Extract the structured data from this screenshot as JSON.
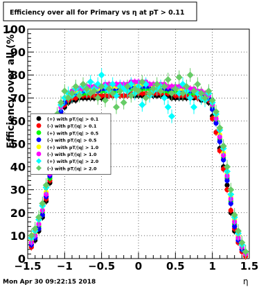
{
  "chart_data": {
    "type": "scatter",
    "title": "Efficiency over all for Primary vs   η at pT > 0.11",
    "xlabel": "η",
    "ylabel": "Efficiency over all (%)",
    "xlim": [
      -1.5,
      1.5
    ],
    "ylim": [
      0,
      100
    ],
    "x_ticks": [
      -1.5,
      -1,
      -0.5,
      0,
      0.5,
      1,
      1.5
    ],
    "x_tick_labels": [
      "−1.5",
      "−1",
      "−0.5",
      "0",
      "0.5",
      "1",
      "1.5"
    ],
    "y_ticks": [
      0,
      10,
      20,
      30,
      40,
      50,
      60,
      70,
      80,
      90,
      100
    ],
    "grid": true,
    "legend_position": "left",
    "timestamp": "Mon Apr 30 09:22:15 2018",
    "series": [
      {
        "name": "(+) with pT/|q| > 0.1",
        "color": "#000000",
        "x": [
          -1.45,
          -1.4,
          -1.35,
          -1.3,
          -1.25,
          -1.2,
          -1.15,
          -1.1,
          -1.05,
          -1.0,
          -0.95,
          -0.9,
          -0.85,
          -0.8,
          -0.75,
          -0.7,
          -0.65,
          -0.6,
          -0.55,
          -0.5,
          -0.45,
          -0.4,
          -0.35,
          -0.3,
          -0.25,
          -0.2,
          -0.15,
          -0.1,
          -0.05,
          0.0,
          0.05,
          0.1,
          0.15,
          0.2,
          0.25,
          0.3,
          0.35,
          0.4,
          0.45,
          0.5,
          0.55,
          0.6,
          0.65,
          0.7,
          0.75,
          0.8,
          0.85,
          0.9,
          0.95,
          1.0,
          1.05,
          1.1,
          1.15,
          1.2,
          1.25,
          1.3,
          1.35,
          1.4,
          1.45
        ],
        "y": [
          6,
          8,
          12,
          18,
          25,
          33,
          45,
          55,
          62,
          66,
          68,
          69,
          69,
          70,
          70,
          70,
          70,
          70,
          70,
          70,
          70,
          71,
          71,
          71,
          71,
          71,
          71,
          71,
          71,
          71,
          71,
          71,
          71,
          71,
          71,
          71,
          71,
          71,
          70,
          70,
          70,
          70,
          70,
          70,
          70,
          70,
          69,
          69,
          68,
          62,
          55,
          48,
          40,
          32,
          20,
          12,
          7,
          4,
          2
        ]
      },
      {
        "name": "(-) with pT/|q| > 0.1",
        "color": "#ff0000",
        "x": [
          -1.45,
          -1.4,
          -1.35,
          -1.3,
          -1.25,
          -1.2,
          -1.15,
          -1.1,
          -1.05,
          -1.0,
          -0.95,
          -0.9,
          -0.85,
          -0.8,
          -0.75,
          -0.7,
          -0.65,
          -0.6,
          -0.55,
          -0.5,
          -0.45,
          -0.4,
          -0.35,
          -0.3,
          -0.25,
          -0.2,
          -0.15,
          -0.1,
          -0.05,
          0.0,
          0.05,
          0.1,
          0.15,
          0.2,
          0.25,
          0.3,
          0.35,
          0.4,
          0.45,
          0.5,
          0.55,
          0.6,
          0.65,
          0.7,
          0.75,
          0.8,
          0.85,
          0.9,
          0.95,
          1.0,
          1.05,
          1.1,
          1.15,
          1.2,
          1.25,
          1.3,
          1.35,
          1.4,
          1.45
        ],
        "y": [
          5,
          9,
          13,
          19,
          26,
          34,
          46,
          56,
          63,
          67,
          69,
          70,
          70,
          71,
          71,
          71,
          71,
          71,
          71,
          71,
          71,
          71,
          71,
          71,
          71,
          71,
          71,
          72,
          72,
          72,
          72,
          72,
          72,
          72,
          72,
          72,
          72,
          72,
          72,
          71,
          71,
          71,
          71,
          71,
          71,
          70,
          70,
          70,
          69,
          61,
          55,
          47,
          39,
          30,
          21,
          13,
          7,
          3,
          1
        ]
      },
      {
        "name": "(+) with pT/|q| > 0.5",
        "color": "#00ff00",
        "x": [
          -1.45,
          -1.4,
          -1.35,
          -1.3,
          -1.25,
          -1.2,
          -1.15,
          -1.1,
          -1.05,
          -1.0,
          -0.95,
          -0.9,
          -0.85,
          -0.8,
          -0.75,
          -0.7,
          -0.65,
          -0.6,
          -0.55,
          -0.5,
          -0.45,
          -0.4,
          -0.35,
          -0.3,
          -0.25,
          -0.2,
          -0.15,
          -0.1,
          -0.05,
          0.0,
          0.05,
          0.1,
          0.15,
          0.2,
          0.25,
          0.3,
          0.35,
          0.4,
          0.45,
          0.5,
          0.55,
          0.6,
          0.65,
          0.7,
          0.75,
          0.8,
          0.85,
          0.9,
          0.95,
          1.0,
          1.05,
          1.1,
          1.15,
          1.2,
          1.25,
          1.3,
          1.35,
          1.4,
          1.45
        ],
        "y": [
          7,
          10,
          14,
          20,
          27,
          35,
          48,
          58,
          64,
          68,
          70,
          71,
          72,
          72,
          72,
          72,
          73,
          73,
          73,
          73,
          73,
          73,
          73,
          73,
          73,
          74,
          74,
          74,
          74,
          74,
          74,
          74,
          74,
          74,
          74,
          73,
          73,
          73,
          73,
          73,
          73,
          73,
          73,
          72,
          72,
          72,
          72,
          71,
          70,
          66,
          60,
          52,
          44,
          35,
          25,
          15,
          9,
          5,
          2
        ]
      },
      {
        "name": "(-) with pT/|q| > 0.5",
        "color": "#0000ff",
        "x": [
          -1.45,
          -1.4,
          -1.35,
          -1.3,
          -1.25,
          -1.2,
          -1.15,
          -1.1,
          -1.05,
          -1.0,
          -0.95,
          -0.9,
          -0.85,
          -0.8,
          -0.75,
          -0.7,
          -0.65,
          -0.6,
          -0.55,
          -0.5,
          -0.45,
          -0.4,
          -0.35,
          -0.3,
          -0.25,
          -0.2,
          -0.15,
          -0.1,
          -0.05,
          0.0,
          0.05,
          0.1,
          0.15,
          0.2,
          0.25,
          0.3,
          0.35,
          0.4,
          0.45,
          0.5,
          0.55,
          0.6,
          0.65,
          0.7,
          0.75,
          0.8,
          0.85,
          0.9,
          0.95,
          1.0,
          1.05,
          1.1,
          1.15,
          1.2,
          1.25,
          1.3,
          1.35,
          1.4,
          1.45
        ],
        "y": [
          6,
          9,
          13,
          19,
          27,
          36,
          48,
          58,
          64,
          68,
          70,
          71,
          72,
          72,
          73,
          73,
          73,
          73,
          73,
          74,
          74,
          74,
          74,
          74,
          74,
          74,
          74,
          75,
          75,
          75,
          75,
          75,
          75,
          75,
          74,
          74,
          74,
          74,
          74,
          74,
          74,
          73,
          73,
          73,
          73,
          72,
          72,
          71,
          70,
          65,
          59,
          51,
          43,
          34,
          24,
          14,
          8,
          4,
          2
        ]
      },
      {
        "name": "(+) with pT/|q| > 1.0",
        "color": "#ffff00",
        "x": [
          -1.45,
          -1.4,
          -1.35,
          -1.3,
          -1.25,
          -1.2,
          -1.15,
          -1.1,
          -1.05,
          -1.0,
          -0.95,
          -0.9,
          -0.85,
          -0.8,
          -0.75,
          -0.7,
          -0.65,
          -0.6,
          -0.55,
          -0.5,
          -0.45,
          -0.4,
          -0.35,
          -0.3,
          -0.25,
          -0.2,
          -0.15,
          -0.1,
          -0.05,
          0.0,
          0.05,
          0.1,
          0.15,
          0.2,
          0.25,
          0.3,
          0.35,
          0.4,
          0.45,
          0.5,
          0.55,
          0.6,
          0.65,
          0.7,
          0.75,
          0.8,
          0.85,
          0.9,
          0.95,
          1.0,
          1.05,
          1.1,
          1.15,
          1.2,
          1.25,
          1.3,
          1.35,
          1.4,
          1.45
        ],
        "y": [
          8,
          11,
          15,
          21,
          29,
          38,
          50,
          60,
          66,
          70,
          71,
          72,
          73,
          73,
          74,
          74,
          74,
          74,
          74,
          75,
          75,
          75,
          75,
          75,
          75,
          75,
          75,
          76,
          76,
          76,
          76,
          76,
          76,
          75,
          75,
          75,
          75,
          75,
          75,
          75,
          74,
          74,
          74,
          74,
          73,
          73,
          73,
          72,
          71,
          67,
          62,
          54,
          46,
          37,
          27,
          17,
          10,
          5,
          2
        ]
      },
      {
        "name": "(-) with pT/|q| > 1.0",
        "color": "#ff00ff",
        "x": [
          -1.45,
          -1.4,
          -1.35,
          -1.3,
          -1.25,
          -1.2,
          -1.15,
          -1.1,
          -1.05,
          -1.0,
          -0.95,
          -0.9,
          -0.85,
          -0.8,
          -0.75,
          -0.7,
          -0.65,
          -0.6,
          -0.55,
          -0.5,
          -0.45,
          -0.4,
          -0.35,
          -0.3,
          -0.25,
          -0.2,
          -0.15,
          -0.1,
          -0.05,
          0.0,
          0.05,
          0.1,
          0.15,
          0.2,
          0.25,
          0.3,
          0.35,
          0.4,
          0.45,
          0.5,
          0.55,
          0.6,
          0.65,
          0.7,
          0.75,
          0.8,
          0.85,
          0.9,
          0.95,
          1.0,
          1.05,
          1.1,
          1.15,
          1.2,
          1.25,
          1.3,
          1.35,
          1.4,
          1.45
        ],
        "y": [
          7,
          10,
          15,
          21,
          28,
          37,
          49,
          60,
          66,
          70,
          72,
          73,
          74,
          74,
          74,
          75,
          75,
          75,
          75,
          75,
          76,
          76,
          76,
          76,
          76,
          76,
          76,
          77,
          77,
          77,
          77,
          77,
          76,
          76,
          76,
          76,
          76,
          75,
          75,
          75,
          75,
          75,
          74,
          74,
          74,
          73,
          73,
          72,
          71,
          67,
          61,
          53,
          45,
          36,
          26,
          16,
          9,
          5,
          2
        ]
      },
      {
        "name": "(+) with pT/|q| > 2.0",
        "color": "#00ffff",
        "x": [
          -1.45,
          -1.4,
          -1.35,
          -1.3,
          -1.25,
          -1.2,
          -1.15,
          -1.1,
          -1.05,
          -1.0,
          -0.95,
          -0.9,
          -0.85,
          -0.8,
          -0.75,
          -0.7,
          -0.65,
          -0.6,
          -0.55,
          -0.5,
          -0.45,
          -0.4,
          -0.35,
          -0.3,
          -0.25,
          -0.2,
          -0.15,
          -0.1,
          -0.05,
          0.0,
          0.05,
          0.1,
          0.15,
          0.2,
          0.25,
          0.3,
          0.35,
          0.4,
          0.45,
          0.5,
          0.55,
          0.6,
          0.65,
          0.7,
          0.75,
          0.8,
          0.85,
          0.9,
          0.95,
          1.0,
          1.05,
          1.1,
          1.15,
          1.2,
          1.25,
          1.3,
          1.35,
          1.4,
          1.45
        ],
        "y": [
          9,
          12,
          17,
          23,
          31,
          40,
          52,
          62,
          67,
          70,
          72,
          71,
          74,
          72,
          75,
          73,
          77,
          74,
          76,
          80,
          75,
          73,
          76,
          71,
          75,
          74,
          73,
          76,
          72,
          75,
          67,
          76,
          71,
          73,
          74,
          75,
          70,
          66,
          62,
          74,
          72,
          76,
          73,
          70,
          66,
          72,
          70,
          69,
          72,
          68,
          63,
          56,
          48,
          38,
          28,
          18,
          11,
          6,
          3
        ]
      },
      {
        "name": "(-) with pT/|q| > 2.0",
        "color": "#66cc66",
        "x": [
          -1.45,
          -1.4,
          -1.35,
          -1.3,
          -1.25,
          -1.2,
          -1.15,
          -1.1,
          -1.05,
          -1.0,
          -0.95,
          -0.9,
          -0.85,
          -0.8,
          -0.75,
          -0.7,
          -0.65,
          -0.6,
          -0.55,
          -0.5,
          -0.45,
          -0.4,
          -0.35,
          -0.3,
          -0.25,
          -0.2,
          -0.15,
          -0.1,
          -0.05,
          0.0,
          0.05,
          0.1,
          0.15,
          0.2,
          0.25,
          0.3,
          0.35,
          0.4,
          0.45,
          0.5,
          0.55,
          0.6,
          0.65,
          0.7,
          0.75,
          0.8,
          0.85,
          0.9,
          0.95,
          1.0,
          1.05,
          1.1,
          1.15,
          1.2,
          1.25,
          1.3,
          1.35,
          1.4,
          1.45
        ],
        "y": [
          10,
          13,
          18,
          24,
          32,
          41,
          53,
          63,
          68,
          73,
          70,
          72,
          75,
          71,
          76,
          74,
          72,
          73,
          70,
          75,
          69,
          74,
          72,
          66,
          73,
          68,
          75,
          71,
          74,
          73,
          77,
          70,
          72,
          74,
          76,
          73,
          75,
          78,
          72,
          74,
          79,
          72,
          75,
          80,
          73,
          76,
          72,
          70,
          73,
          69,
          64,
          57,
          49,
          40,
          30,
          19,
          12,
          7,
          3
        ]
      }
    ]
  }
}
